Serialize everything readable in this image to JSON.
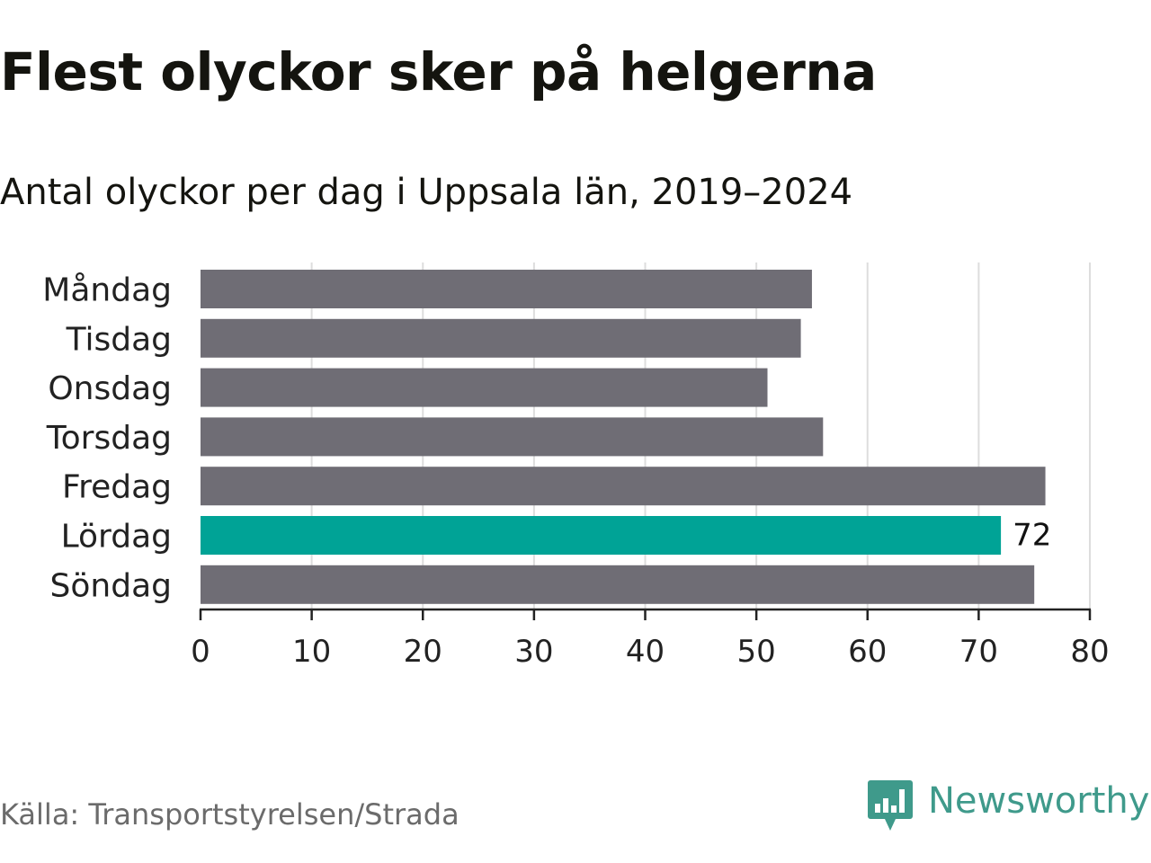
{
  "title": "Flest olyckor sker på helgerna",
  "subtitle": "Antal olyckor per dag i Uppsala län, 2019–2024",
  "source": "Källa: Transportstyrelsen/Strada",
  "brand": {
    "name": "Newsworthy",
    "logo_icon": "newsworthy-chart-bubble-icon"
  },
  "colors": {
    "bar_default": "#6f6d75",
    "bar_highlight": "#00a396",
    "grid": "#dddddd",
    "axis": "#222222",
    "brand": "#3f9a8b"
  },
  "chart_data": {
    "type": "bar",
    "orientation": "horizontal",
    "categories": [
      "Måndag",
      "Tisdag",
      "Onsdag",
      "Torsdag",
      "Fredag",
      "Lördag",
      "Söndag"
    ],
    "values": [
      55,
      54,
      51,
      56,
      76,
      72,
      75
    ],
    "highlight": "Lördag",
    "data_labels": [
      {
        "category": "Lördag",
        "text": "72"
      }
    ],
    "xlim": [
      0,
      80
    ],
    "xticks": [
      0,
      10,
      20,
      30,
      40,
      50,
      60,
      70,
      80
    ],
    "grid": true,
    "legend": "none"
  }
}
